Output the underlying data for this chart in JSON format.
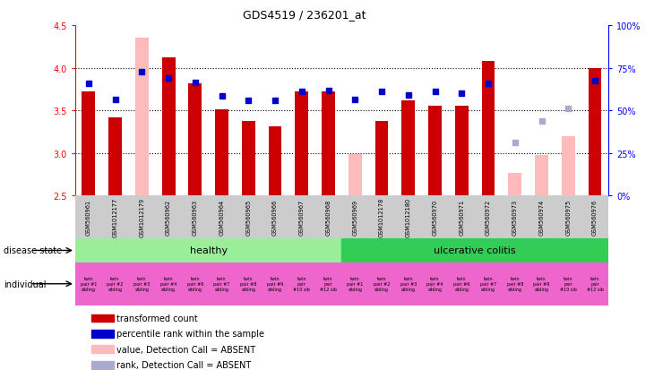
{
  "title": "GDS4519 / 236201_at",
  "samples": [
    "GSM560961",
    "GSM1012177",
    "GSM1012179",
    "GSM560962",
    "GSM560963",
    "GSM560964",
    "GSM560965",
    "GSM560966",
    "GSM560967",
    "GSM560968",
    "GSM560969",
    "GSM1012178",
    "GSM1012180",
    "GSM560970",
    "GSM560971",
    "GSM560972",
    "GSM560973",
    "GSM560974",
    "GSM560975",
    "GSM560976"
  ],
  "red_values": [
    3.72,
    3.42,
    null,
    4.12,
    3.82,
    3.51,
    3.38,
    3.31,
    3.72,
    3.72,
    null,
    3.38,
    3.62,
    3.55,
    3.55,
    4.08,
    null,
    null,
    null,
    4.0
  ],
  "pink_values": [
    null,
    null,
    4.35,
    null,
    null,
    null,
    null,
    null,
    null,
    null,
    2.99,
    null,
    null,
    null,
    null,
    null,
    2.77,
    2.98,
    3.2,
    null
  ],
  "blue_values": [
    3.82,
    3.63,
    3.95,
    3.88,
    3.83,
    3.67,
    3.62,
    3.62,
    3.72,
    3.73,
    3.63,
    3.72,
    3.68,
    3.72,
    3.7,
    3.82,
    null,
    null,
    null,
    3.85
  ],
  "light_blue_values": [
    null,
    null,
    null,
    null,
    null,
    null,
    null,
    null,
    null,
    null,
    null,
    null,
    null,
    null,
    null,
    null,
    3.12,
    3.38,
    3.52,
    null
  ],
  "absent_mask_red": [
    false,
    false,
    true,
    false,
    false,
    false,
    false,
    false,
    false,
    false,
    true,
    false,
    false,
    false,
    false,
    false,
    true,
    true,
    true,
    false
  ],
  "absent_mask_blue": [
    false,
    false,
    false,
    false,
    false,
    false,
    false,
    false,
    false,
    false,
    false,
    false,
    false,
    false,
    false,
    false,
    true,
    true,
    true,
    false
  ],
  "disease_state": {
    "healthy": [
      0,
      10
    ],
    "ulcerative colitis": [
      10,
      20
    ]
  },
  "individual_labels": [
    "twin\npair #1\nsibling",
    "twin\npair #2\nsibling",
    "twin\npair #3\nsibling",
    "twin\npair #4\nsibling",
    "twin\npair #6\nsibling",
    "twin\npair #7\nsibling",
    "twin\npair #8\nsibling",
    "twin\npair #9\nsibling",
    "twin\npair\n#10 sib",
    "twin\npair\n#12 sib",
    "twin\npair #1\nsibling",
    "twin\npair #2\nsibling",
    "twin\npair #3\nsibling",
    "twin\npair #4\nsibling",
    "twin\npair #6\nsibling",
    "twin\npair #7\nsibling",
    "twin\npair #8\nsibling",
    "twin\npair #9\nsibling",
    "twin\npair\n#10 sib",
    "twin\npair\n#12 sib"
  ],
  "ylim_left": [
    2.5,
    4.5
  ],
  "ylim_right": [
    0,
    100
  ],
  "yticks_left": [
    2.5,
    3.0,
    3.5,
    4.0,
    4.5
  ],
  "yticks_right": [
    0,
    25,
    50,
    75,
    100
  ],
  "ytick_labels_right": [
    "0%",
    "25%",
    "50%",
    "75%",
    "100%"
  ],
  "bar_width": 0.5,
  "colors": {
    "red": "#cc0000",
    "pink": "#ffbbbb",
    "blue": "#0000cc",
    "light_blue": "#aaaacc",
    "healthy_bg": "#99ee99",
    "colitis_bg": "#33cc55",
    "individual_bg": "#ee66cc",
    "sample_bg": "#cccccc",
    "grid_line": "black"
  },
  "legend_items": [
    {
      "color": "#cc0000",
      "label": "transformed count"
    },
    {
      "color": "#0000cc",
      "label": "percentile rank within the sample"
    },
    {
      "color": "#ffbbbb",
      "label": "value, Detection Call = ABSENT"
    },
    {
      "color": "#aaaacc",
      "label": "rank, Detection Call = ABSENT"
    }
  ]
}
